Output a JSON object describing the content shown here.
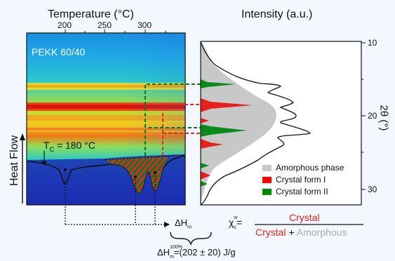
{
  "left_panel": {
    "x_axis_title": "Temperature (°C)",
    "x_ticks": [
      "200",
      "250",
      "300"
    ],
    "sample_label": "PEKK 60/40",
    "y_axis_title": "Heat Flow",
    "tc_label_prefix": "T",
    "tc_label_sub": "C",
    "tc_label_suffix": " = 180 °C"
  },
  "right_panel": {
    "x_axis_title": "Intensity (a.u.)",
    "y_axis_title": "2θ (°)",
    "y_ticks": [
      "10",
      "20",
      "30"
    ],
    "legend": [
      {
        "label": "Amorphous phase",
        "color": "#c8c8c8"
      },
      {
        "label": "Crystal form I",
        "color": "#ff0000"
      },
      {
        "label": "Crystal form II",
        "color": "#008c00"
      }
    ]
  },
  "equations": {
    "delta_h_main": "ΔH",
    "delta_h_sub": "m",
    "chi_main": "χ",
    "chi_sub": "c",
    "chi_sup": "w",
    "chi_equals": "=",
    "numerator": "Crystal",
    "denominator_crystal": "Crystal",
    "denominator_plus": " + ",
    "denominator_amorphous": "Amorphous",
    "dh100_main": "ΔH",
    "dh100_sub": "m",
    "dh100_sup": "100%",
    "dh100_value": "=(202 ± 20) J/g"
  },
  "colors": {
    "crystal_red": "#e8201c",
    "amorphous_gray": "#a8a8a8",
    "form_I": "#ff0000",
    "form_II": "#008c00",
    "amorphous_fill": "#c8c8c8"
  }
}
